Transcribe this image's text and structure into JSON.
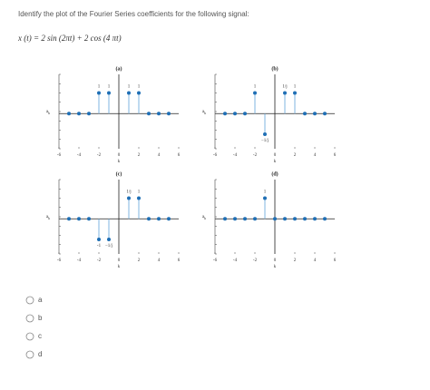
{
  "question": "Identify the plot of the Fourier Series coefficients for the following signal:",
  "equation": "x (t) = 2  sin (2πt)  +  2 cos (4 πt)",
  "plots": [
    {
      "type": "stem",
      "title": "(a)",
      "xlabel": "k",
      "ylabel": "a",
      "ylabel_sub": "k",
      "xlim": [
        -6,
        6
      ],
      "ylim": [
        -1.7,
        1.9
      ],
      "xticks": [
        -6,
        -4,
        -2,
        0,
        2,
        4,
        6
      ],
      "x": [
        -5,
        -4,
        -3,
        -2,
        -1,
        1,
        2,
        3,
        4,
        5
      ],
      "values": [
        0,
        0,
        0,
        1,
        1,
        1,
        1,
        0,
        0,
        0
      ],
      "value_labels": [
        null,
        null,
        null,
        "1",
        "1",
        "1",
        "1",
        null,
        null,
        null
      ]
    },
    {
      "type": "stem",
      "title": "(b)",
      "xlabel": "k",
      "ylabel": "a",
      "ylabel_sub": "k",
      "xlim": [
        -6,
        6
      ],
      "ylim": [
        -1.7,
        1.9
      ],
      "xticks": [
        -6,
        -4,
        -2,
        0,
        2,
        4,
        6
      ],
      "x": [
        -5,
        -4,
        -3,
        -2,
        -1,
        1,
        2,
        3,
        4,
        5
      ],
      "values": [
        0,
        0,
        0,
        1,
        -1,
        1,
        1,
        0,
        0,
        0
      ],
      "value_labels": [
        null,
        null,
        null,
        "1",
        "−1/j",
        "1/j",
        "1",
        null,
        null,
        null
      ]
    },
    {
      "type": "stem",
      "title": "(c)",
      "xlabel": "k",
      "ylabel": "a",
      "ylabel_sub": "k",
      "xlim": [
        -6,
        6
      ],
      "ylim": [
        -1.7,
        1.9
      ],
      "xticks": [
        -6,
        -4,
        -2,
        0,
        2,
        4,
        6
      ],
      "x": [
        -5,
        -4,
        -3,
        -2,
        -1,
        1,
        2,
        3,
        4,
        5
      ],
      "values": [
        0,
        0,
        0,
        -1,
        -1,
        1,
        1,
        0,
        0,
        0
      ],
      "value_labels": [
        null,
        null,
        null,
        "-1",
        "−1/j",
        "1/j",
        "1",
        null,
        null,
        null
      ]
    },
    {
      "type": "stem",
      "title": "(d)",
      "xlabel": "k",
      "ylabel": "a",
      "ylabel_sub": "k",
      "xlim": [
        -6,
        6
      ],
      "ylim": [
        -1.7,
        1.9
      ],
      "xticks": [
        -6,
        -4,
        -2,
        0,
        2,
        4,
        6
      ],
      "x": [
        -5,
        -4,
        -3,
        -2,
        -1,
        0,
        1,
        2,
        3,
        4,
        5
      ],
      "values": [
        0,
        0,
        0,
        0,
        1,
        0,
        0,
        0,
        0,
        0,
        0
      ],
      "value_labels": [
        null,
        null,
        null,
        null,
        "1",
        null,
        null,
        null,
        null,
        null,
        null
      ]
    }
  ],
  "options": [
    "a",
    "b",
    "c",
    "d"
  ]
}
